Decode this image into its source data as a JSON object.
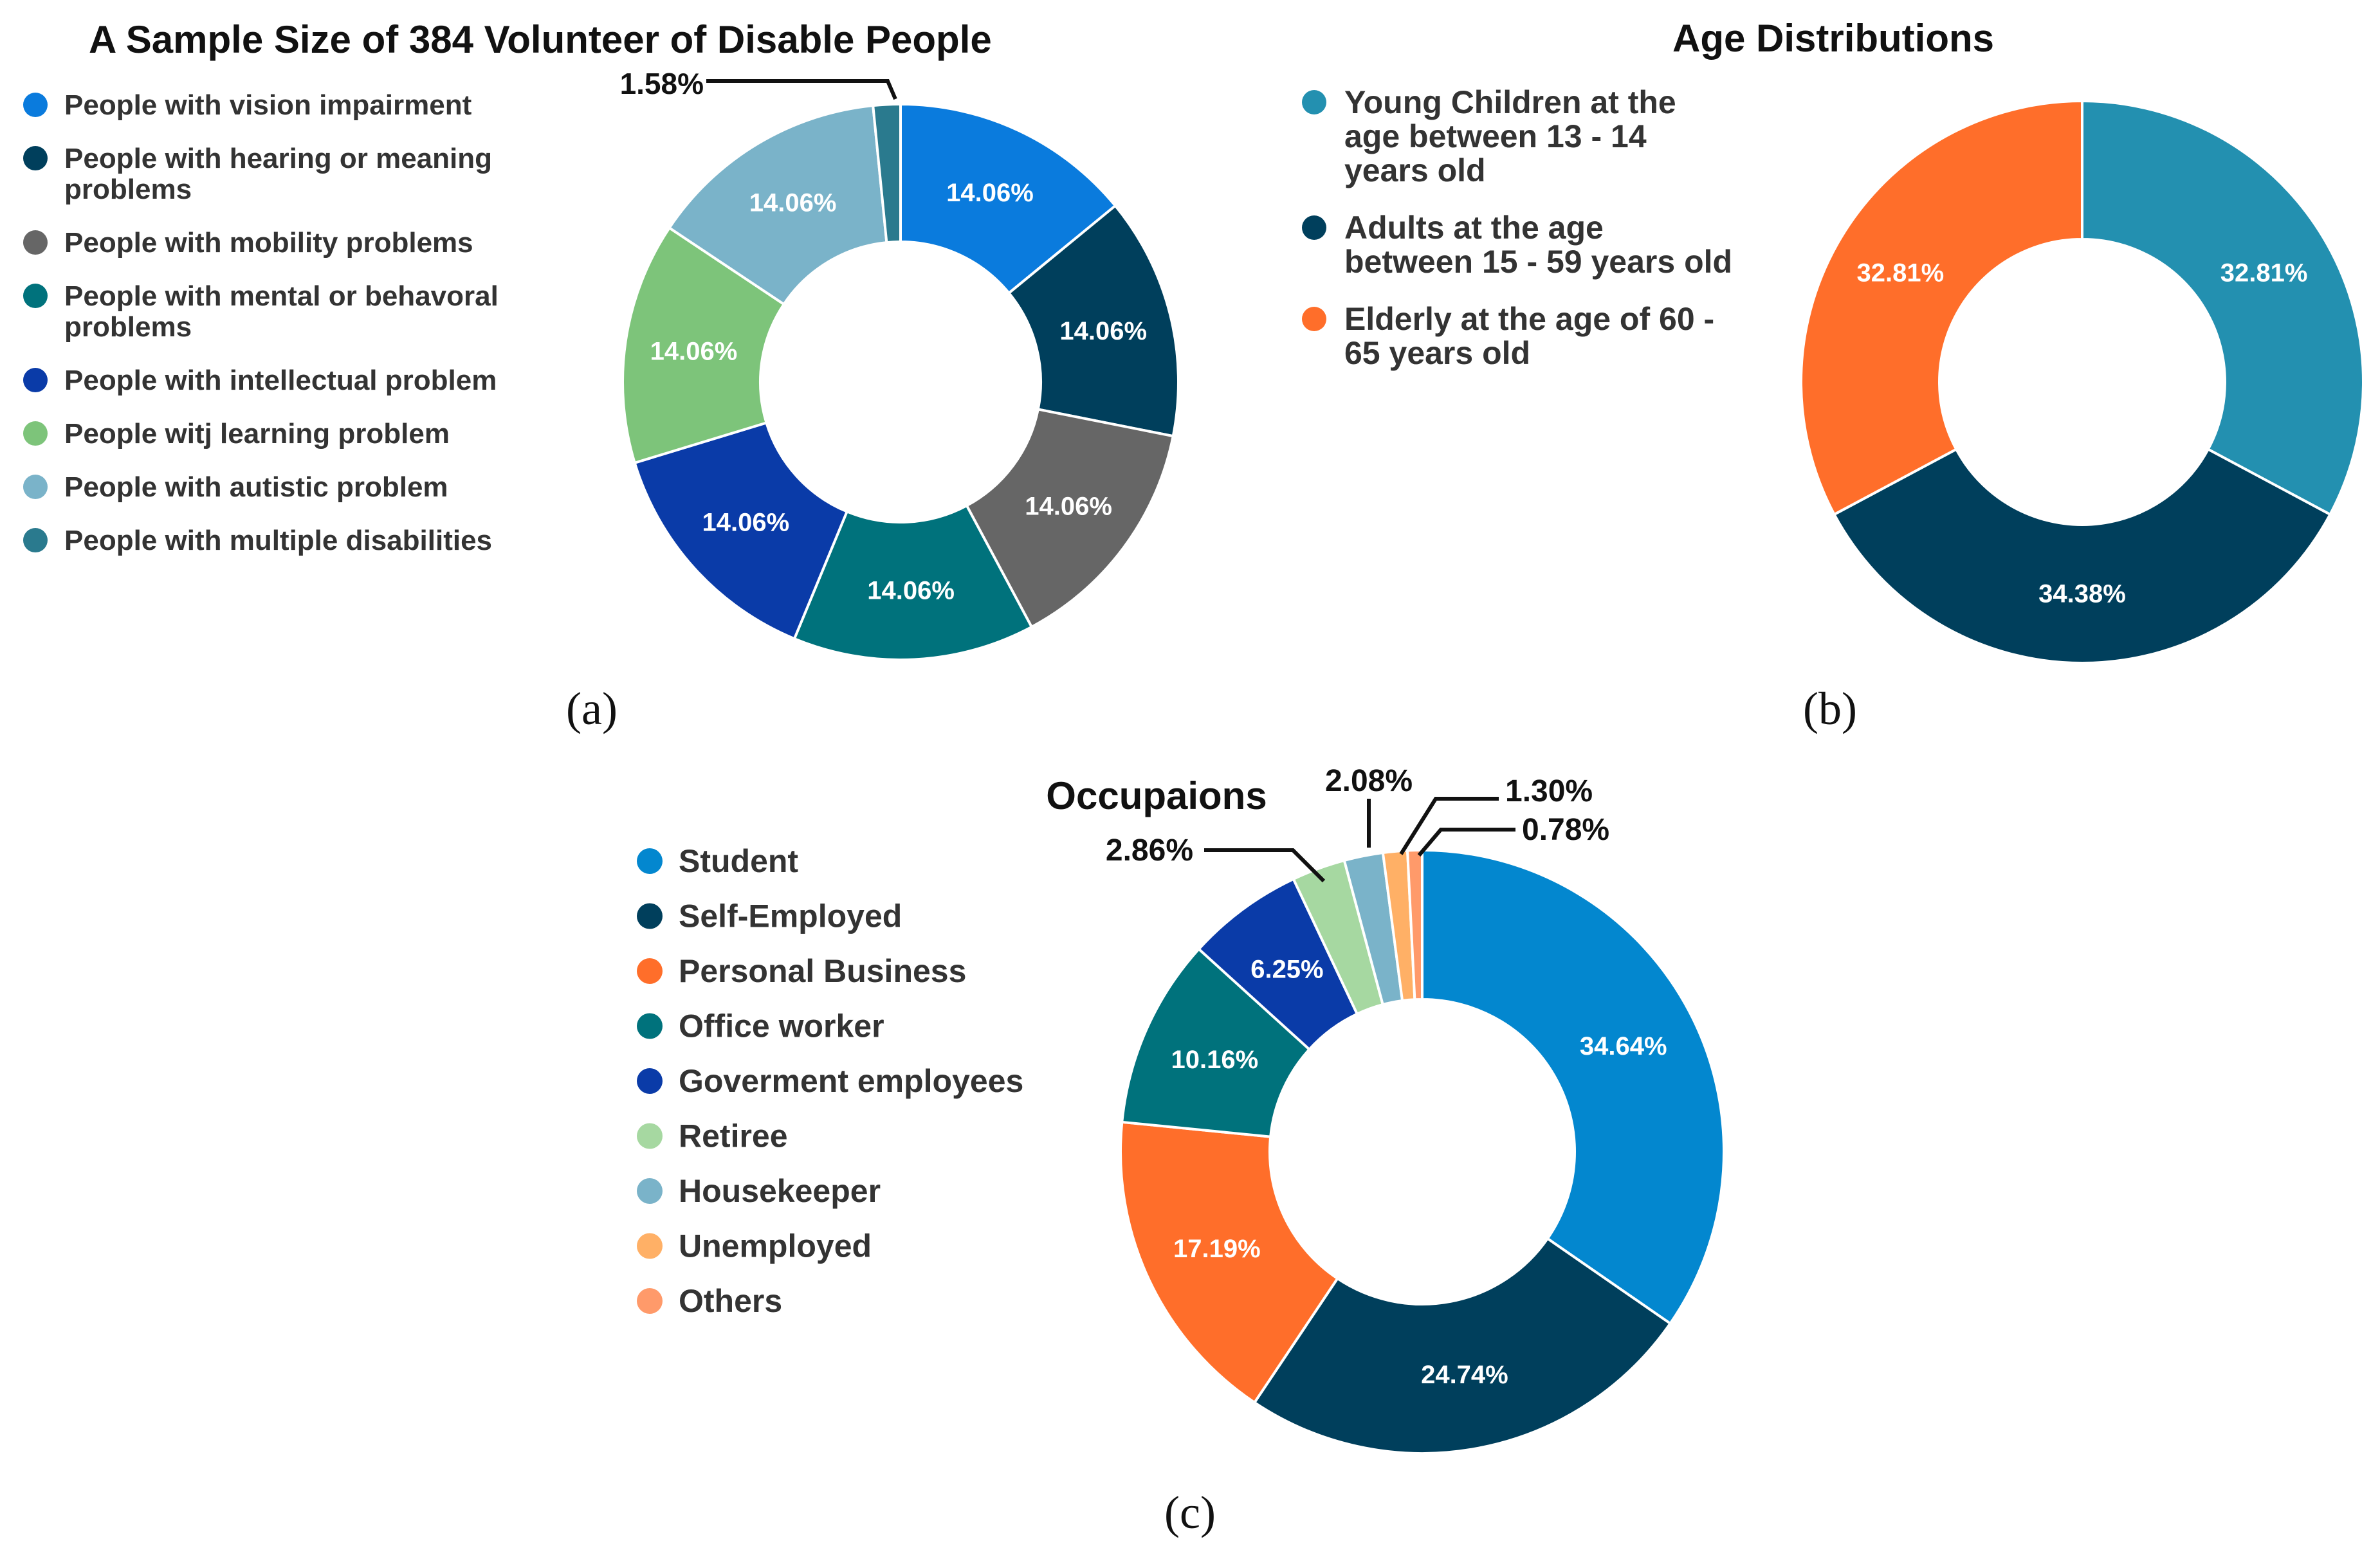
{
  "chart_data": [
    {
      "id": "a",
      "type": "donut",
      "panel_label": "(a)",
      "title": "A Sample Size of 384 Volunteer of Disable People",
      "categories": [
        "People with vision impairment",
        "People with hearing or meaning problems",
        "People with mobility problems",
        "People with mental or behavoral problems",
        "People with intellectual problem",
        "People witj learning problem",
        "People with autistic problem",
        "People with multiple disabilities"
      ],
      "values": [
        14.06,
        14.06,
        14.06,
        14.06,
        14.06,
        14.06,
        14.06,
        1.58
      ],
      "labels": [
        "14.06%",
        "14.06%",
        "14.06%",
        "14.06%",
        "14.06%",
        "14.06%",
        "14.06%",
        "1.58%"
      ],
      "colors": [
        "#0A7BDD",
        "#003F5C",
        "#666666",
        "#00727C",
        "#0A3BA8",
        "#7DC47A",
        "#7AB3C9",
        "#2A7A8E"
      ],
      "legend_lines": [
        [
          "People with vision impairment"
        ],
        [
          "People with hearing or meaning",
          "problems"
        ],
        [
          "People with mobility problems"
        ],
        [
          "People with mental or behavoral",
          "problems"
        ],
        [
          "People with intellectual problem"
        ],
        [
          "People witj learning problem"
        ],
        [
          "People with autistic problem"
        ],
        [
          "People with multiple disabilities"
        ]
      ]
    },
    {
      "id": "b",
      "type": "donut",
      "panel_label": "(b)",
      "title": "Age Distributions",
      "categories": [
        "Young Children at the age between 13 - 14 years old",
        "Adults at the age between 15 - 59 years old",
        "Elderly at the age of 60 - 65 years old"
      ],
      "values": [
        32.81,
        34.38,
        32.81
      ],
      "labels": [
        "32.81%",
        "34.38%",
        "32.81%"
      ],
      "colors": [
        "#2390B0",
        "#003F5C",
        "#FF6E2A"
      ],
      "legend_lines": [
        [
          "Young Children at the",
          "age between 13 - 14",
          "years old"
        ],
        [
          "Adults at the age",
          "between 15 - 59 years old"
        ],
        [
          "Elderly at the age of 60 -",
          "65 years old"
        ]
      ]
    },
    {
      "id": "c",
      "type": "donut",
      "panel_label": "(c)",
      "title": "Occupaions",
      "categories": [
        "Student",
        "Self-Employed",
        "Personal Business",
        "Office worker",
        "Goverment employees",
        "Retiree",
        "Housekeeper",
        "Unemployed",
        "Others"
      ],
      "values": [
        34.64,
        24.74,
        17.19,
        10.16,
        6.25,
        2.86,
        2.08,
        1.3,
        0.78
      ],
      "labels": [
        "34.64%",
        "24.74%",
        "17.19%",
        "10.16%",
        "6.25%",
        "2.86%",
        "2.08%",
        "1.30%",
        "0.78%"
      ],
      "colors": [
        "#0387CF",
        "#003F5C",
        "#FF6E2A",
        "#00727C",
        "#0A3BA8",
        "#A6D8A1",
        "#7AB3C9",
        "#FFB066",
        "#FF9A6A"
      ],
      "legend_lines": [
        [
          "Student"
        ],
        [
          "Self-Employed"
        ],
        [
          "Personal Business"
        ],
        [
          "Office worker"
        ],
        [
          "Goverment employees"
        ],
        [
          "Retiree"
        ],
        [
          "Housekeeper"
        ],
        [
          "Unemployed"
        ],
        [
          "Others"
        ]
      ]
    }
  ]
}
